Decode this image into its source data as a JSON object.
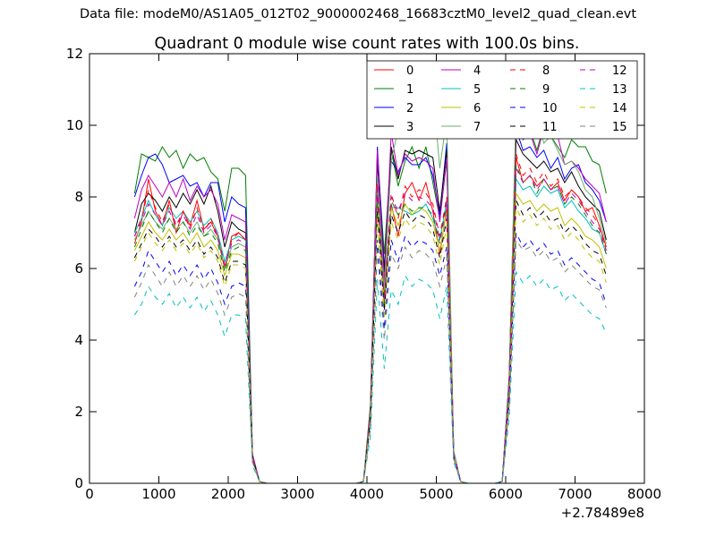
{
  "figure": {
    "suptitle": "Data file: modeM0/AS1A05_012T02_9000002468_16683cztM0_level2_quad_clean.evt",
    "background": "#ffffff"
  },
  "chart_data": {
    "type": "line",
    "title": "Quadrant 0 module wise count rates with 100.0s bins.",
    "xlabel": "",
    "ylabel": "",
    "xlim": [
      0,
      8000
    ],
    "ylim": [
      0,
      12
    ],
    "x_offset_label": "+2.78489e8",
    "x_ticks": [
      0,
      1000,
      2000,
      3000,
      4000,
      5000,
      6000,
      7000,
      8000
    ],
    "y_ticks": [
      0,
      2,
      4,
      6,
      8,
      10,
      12
    ],
    "grid": false,
    "legend_position": "top-right",
    "legend_columns": 4,
    "x": [
      650,
      750,
      850,
      950,
      1050,
      1150,
      1250,
      1350,
      1450,
      1550,
      1650,
      1750,
      1850,
      1950,
      2050,
      2150,
      2250,
      2350,
      2450,
      2550,
      2650,
      2750,
      2850,
      2950,
      3050,
      3150,
      3250,
      3350,
      3450,
      3550,
      3650,
      3750,
      3850,
      3950,
      4050,
      4150,
      4250,
      4350,
      4450,
      4550,
      4650,
      4750,
      4850,
      4950,
      5050,
      5150,
      5250,
      5350,
      5450,
      5550,
      5650,
      5750,
      5850,
      5950,
      6050,
      6150,
      6250,
      6350,
      6450,
      6550,
      6650,
      6750,
      6850,
      6950,
      7050,
      7150,
      7250,
      7350,
      7450
    ],
    "series": [
      {
        "name": "0",
        "color": "#ff0000",
        "style": "solid",
        "values": [
          6.7,
          7.3,
          8.5,
          7.6,
          7.2,
          7.9,
          7.0,
          7.6,
          7.2,
          7.9,
          7.1,
          7.3,
          6.9,
          6.0,
          6.9,
          7.0,
          6.8,
          0.7,
          0.05,
          0,
          0,
          0,
          0,
          0,
          0,
          0,
          0,
          0,
          0,
          0,
          0,
          0,
          0,
          0.05,
          1.8,
          8.2,
          5.2,
          7.8,
          6.9,
          8.1,
          8.4,
          7.9,
          8.4,
          7.6,
          6.4,
          7.7,
          0.8,
          0.05,
          0,
          0,
          0,
          0,
          0,
          0.05,
          2.5,
          9.1,
          8.4,
          8.6,
          8.3,
          8.5,
          8.2,
          8.4,
          7.9,
          8.2,
          8.0,
          7.6,
          7.7,
          7.2,
          6.6
        ]
      },
      {
        "name": "1",
        "color": "#008000",
        "style": "solid",
        "values": [
          8.1,
          9.2,
          9.1,
          9.0,
          9.4,
          9.1,
          9.3,
          8.8,
          9.2,
          9.0,
          9.1,
          8.7,
          8.5,
          7.6,
          8.8,
          8.8,
          8.6,
          0.8,
          0.05,
          0,
          0,
          0,
          0,
          0,
          0,
          0,
          0,
          0,
          0,
          0,
          0,
          0,
          0,
          0.05,
          2.2,
          9.2,
          6.4,
          9.3,
          8.3,
          9.0,
          9.4,
          8.8,
          9.4,
          8.4,
          7.4,
          9.0,
          0.9,
          0.05,
          0,
          0,
          0,
          0,
          0,
          0.05,
          3.0,
          10.2,
          9.6,
          9.9,
          9.3,
          10.0,
          9.7,
          9.4,
          9.1,
          9.6,
          9.4,
          9.4,
          9.0,
          8.9,
          8.1
        ]
      },
      {
        "name": "2",
        "color": "#0000ff",
        "style": "solid",
        "values": [
          8.0,
          8.6,
          9.1,
          9.2,
          8.9,
          8.4,
          8.5,
          8.6,
          8.3,
          8.4,
          8.0,
          8.4,
          8.4,
          7.3,
          8.0,
          7.8,
          7.7,
          0.7,
          0.05,
          0,
          0,
          0,
          0,
          0,
          0,
          0,
          0,
          0,
          0,
          0,
          0,
          0,
          0,
          0.05,
          2.0,
          9.4,
          6.0,
          9.0,
          8.7,
          9.1,
          8.9,
          8.9,
          9.1,
          8.6,
          7.5,
          9.5,
          0.9,
          0.05,
          0,
          0,
          0,
          0,
          0,
          0.05,
          2.9,
          9.9,
          9.3,
          9.4,
          9.1,
          9.3,
          8.8,
          9.1,
          8.5,
          8.8,
          8.9,
          8.4,
          8.2,
          7.9,
          7.3
        ]
      },
      {
        "name": "3",
        "color": "#000000",
        "style": "solid",
        "values": [
          7.0,
          7.8,
          8.1,
          7.9,
          7.6,
          8.0,
          7.7,
          8.1,
          7.8,
          8.2,
          7.8,
          8.3,
          7.6,
          6.6,
          7.3,
          7.1,
          7.0,
          0.8,
          0.05,
          0,
          0,
          0,
          0,
          0,
          0,
          0,
          0,
          0,
          0,
          0,
          0,
          0,
          0,
          0.05,
          2.0,
          9.0,
          5.9,
          9.4,
          8.5,
          9.3,
          9.2,
          9.3,
          9.2,
          9.1,
          7.6,
          9.3,
          0.9,
          0.05,
          0,
          0,
          0,
          0,
          0,
          0.05,
          2.8,
          9.6,
          9.2,
          9.0,
          8.8,
          9.0,
          8.7,
          8.8,
          8.4,
          8.7,
          8.3,
          8.0,
          7.8,
          7.6,
          6.8
        ]
      },
      {
        "name": "4",
        "color": "#bf00bf",
        "style": "solid",
        "values": [
          7.4,
          8.2,
          8.6,
          8.3,
          8.0,
          8.4,
          8.0,
          8.5,
          7.9,
          8.3,
          8.0,
          8.2,
          7.8,
          6.8,
          7.5,
          7.4,
          7.3,
          0.8,
          0.05,
          0,
          0,
          0,
          0,
          0,
          0,
          0,
          0,
          0,
          0,
          0,
          0,
          0,
          0,
          0.05,
          2.1,
          9.3,
          5.6,
          9.8,
          8.6,
          9.2,
          9.0,
          9.1,
          9.0,
          8.8,
          7.3,
          9.1,
          0.9,
          0.05,
          0,
          0,
          0,
          0,
          0,
          0.05,
          2.9,
          10.1,
          9.6,
          9.8,
          9.2,
          9.9,
          9.7,
          9.7,
          8.9,
          9.0,
          8.8,
          8.5,
          8.3,
          8.1,
          7.3
        ]
      },
      {
        "name": "5",
        "color": "#00bfbf",
        "style": "solid",
        "values": [
          7.0,
          7.4,
          7.9,
          7.5,
          7.2,
          7.7,
          7.4,
          7.6,
          7.3,
          7.6,
          7.2,
          7.4,
          7.0,
          6.2,
          6.8,
          6.9,
          6.8,
          0.7,
          0.05,
          0,
          0,
          0,
          0,
          0,
          0,
          0,
          0,
          0,
          0,
          0,
          0,
          0,
          0,
          0.05,
          1.9,
          8.1,
          5.0,
          7.7,
          7.7,
          7.6,
          7.5,
          7.6,
          7.8,
          7.4,
          6.8,
          7.9,
          0.8,
          0.05,
          0,
          0,
          0,
          0,
          0,
          0.05,
          2.6,
          8.5,
          8.2,
          8.3,
          8.0,
          8.3,
          8.1,
          8.2,
          7.7,
          7.9,
          7.6,
          7.4,
          7.1,
          7.0,
          6.4
        ]
      },
      {
        "name": "6",
        "color": "#bfbf00",
        "style": "solid",
        "values": [
          6.5,
          6.9,
          7.3,
          7.0,
          6.8,
          7.1,
          6.8,
          7.0,
          6.7,
          7.0,
          6.6,
          6.8,
          6.5,
          5.8,
          6.4,
          6.4,
          6.3,
          0.7,
          0.05,
          0,
          0,
          0,
          0,
          0,
          0,
          0,
          0,
          0,
          0,
          0,
          0,
          0,
          0,
          0.05,
          1.8,
          7.9,
          4.9,
          7.7,
          7.2,
          7.8,
          7.5,
          7.7,
          7.6,
          7.3,
          6.5,
          7.6,
          0.8,
          0.05,
          0,
          0,
          0,
          0,
          0,
          0.05,
          2.5,
          8.1,
          7.8,
          7.9,
          7.6,
          7.8,
          7.6,
          7.7,
          7.2,
          7.4,
          7.2,
          6.9,
          6.8,
          6.6,
          6.0
        ]
      },
      {
        "name": "7",
        "color": "#6aaf6a",
        "style": "solid",
        "values": [
          6.8,
          7.2,
          7.6,
          7.3,
          7.1,
          7.4,
          7.1,
          7.3,
          7.0,
          7.3,
          6.9,
          7.1,
          6.8,
          6.0,
          6.6,
          6.7,
          6.6,
          0.7,
          0.05,
          0,
          0,
          0,
          0,
          0,
          0,
          0,
          0,
          0,
          0,
          0,
          0,
          0,
          0,
          0.05,
          2.0,
          8.6,
          5.4,
          9.0,
          9.9,
          9.8,
          10.1,
          10.3,
          9.7,
          11.0,
          8.8,
          10.2,
          0.9,
          0.05,
          0,
          0,
          0,
          0,
          0,
          0.05,
          2.8,
          10.6,
          9.9,
          10.1,
          10.3,
          9.5,
          9.7,
          9.3,
          8.9,
          9.0,
          8.7,
          8.2,
          8.0,
          7.4,
          6.7
        ]
      },
      {
        "name": "8",
        "color": "#ff0000",
        "style": "dashed",
        "values": [
          6.9,
          7.4,
          8.2,
          7.7,
          7.3,
          7.8,
          7.2,
          7.6,
          7.1,
          7.7,
          7.0,
          7.4,
          6.9,
          6.0,
          6.8,
          7.0,
          6.8,
          0.7,
          0.05,
          0,
          0,
          0,
          0,
          0,
          0,
          0,
          0,
          0,
          0,
          0,
          0,
          0,
          0,
          0.05,
          1.9,
          8.4,
          5.1,
          8.1,
          7.4,
          8.3,
          8.0,
          8.2,
          8.1,
          7.8,
          6.9,
          8.0,
          0.8,
          0.05,
          0,
          0,
          0,
          0,
          0,
          0.05,
          2.6,
          9.2,
          8.6,
          8.8,
          8.4,
          8.7,
          8.3,
          8.5,
          8.0,
          8.2,
          8.0,
          7.7,
          7.5,
          7.2,
          6.5
        ]
      },
      {
        "name": "9",
        "color": "#008000",
        "style": "dashed",
        "values": [
          6.6,
          7.1,
          7.6,
          7.3,
          7.0,
          7.4,
          7.0,
          7.3,
          6.9,
          7.2,
          6.9,
          7.0,
          6.7,
          5.9,
          6.5,
          6.6,
          6.5,
          0.7,
          0.05,
          0,
          0,
          0,
          0,
          0,
          0,
          0,
          0,
          0,
          0,
          0,
          0,
          0,
          0,
          0.05,
          1.9,
          8.0,
          5.0,
          7.9,
          7.5,
          7.8,
          7.6,
          7.7,
          7.7,
          7.5,
          6.7,
          7.8,
          0.8,
          0.05,
          0,
          0,
          0,
          0,
          0,
          0.05,
          2.7,
          8.9,
          8.4,
          8.6,
          8.1,
          8.5,
          8.2,
          8.3,
          7.8,
          8.0,
          7.8,
          7.5,
          7.2,
          7.0,
          6.4
        ]
      },
      {
        "name": "10",
        "color": "#0000ff",
        "style": "dashed",
        "values": [
          5.5,
          5.9,
          6.5,
          6.2,
          5.9,
          6.2,
          5.8,
          6.1,
          5.8,
          6.1,
          5.7,
          6.0,
          5.6,
          5.0,
          5.5,
          5.6,
          5.5,
          0.6,
          0.05,
          0,
          0,
          0,
          0,
          0,
          0,
          0,
          0,
          0,
          0,
          0,
          0,
          0,
          0,
          0.05,
          1.6,
          6.8,
          4.3,
          6.8,
          6.2,
          6.9,
          6.6,
          6.8,
          6.7,
          6.5,
          5.8,
          6.6,
          0.7,
          0.05,
          0,
          0,
          0,
          0,
          0,
          0.05,
          2.2,
          7.0,
          6.6,
          6.8,
          6.5,
          6.7,
          6.4,
          6.5,
          6.1,
          6.3,
          6.1,
          5.9,
          5.7,
          5.6,
          5.0
        ]
      },
      {
        "name": "11",
        "color": "#000000",
        "style": "dashed",
        "values": [
          6.3,
          6.7,
          7.1,
          6.9,
          6.6,
          6.9,
          6.6,
          6.8,
          6.5,
          6.8,
          6.4,
          6.6,
          6.3,
          5.6,
          6.2,
          6.2,
          6.1,
          0.7,
          0.05,
          0,
          0,
          0,
          0,
          0,
          0,
          0,
          0,
          0,
          0,
          0,
          0,
          0,
          0,
          0.05,
          1.8,
          7.6,
          4.8,
          7.5,
          7.0,
          7.6,
          7.3,
          7.5,
          7.4,
          7.1,
          6.3,
          7.4,
          0.8,
          0.05,
          0,
          0,
          0,
          0,
          0,
          0.05,
          2.4,
          7.9,
          7.5,
          7.7,
          7.4,
          7.6,
          7.3,
          7.4,
          7.0,
          7.2,
          7.0,
          6.7,
          6.5,
          6.4,
          5.8
        ]
      },
      {
        "name": "12",
        "color": "#bf00bf",
        "style": "dashed",
        "values": [
          6.9,
          7.3,
          7.8,
          7.5,
          7.2,
          7.6,
          7.2,
          7.5,
          7.1,
          7.5,
          7.0,
          7.2,
          6.9,
          6.1,
          6.7,
          6.8,
          6.7,
          0.7,
          0.05,
          0,
          0,
          0,
          0,
          0,
          0,
          0,
          0,
          0,
          0,
          0,
          0,
          0,
          0,
          0.05,
          1.9,
          8.2,
          5.1,
          8.0,
          7.6,
          8.1,
          7.9,
          8.0,
          7.9,
          7.7,
          6.8,
          7.9,
          0.8,
          0.05,
          0,
          0,
          0,
          0,
          0,
          0.05,
          2.6,
          8.8,
          8.4,
          8.6,
          8.2,
          8.5,
          8.2,
          8.3,
          7.8,
          8.1,
          7.9,
          7.6,
          7.3,
          7.1,
          6.5
        ]
      },
      {
        "name": "13",
        "color": "#00bfbf",
        "style": "dashed",
        "values": [
          4.7,
          5.0,
          5.5,
          5.2,
          5.0,
          5.3,
          4.9,
          5.2,
          4.9,
          5.2,
          4.8,
          5.1,
          4.7,
          4.1,
          4.7,
          4.7,
          4.6,
          0.5,
          0.05,
          0,
          0,
          0,
          0,
          0,
          0,
          0,
          0,
          0,
          0,
          0,
          0,
          0,
          0,
          0.05,
          1.3,
          5.7,
          3.2,
          5.4,
          5.0,
          5.8,
          5.5,
          5.7,
          5.6,
          5.4,
          4.6,
          5.5,
          0.6,
          0.05,
          0,
          0,
          0,
          0,
          0,
          0.05,
          1.8,
          5.9,
          5.6,
          5.8,
          5.5,
          5.7,
          5.4,
          5.5,
          5.1,
          5.3,
          5.1,
          4.9,
          4.7,
          4.6,
          4.2
        ]
      },
      {
        "name": "14",
        "color": "#bfbf00",
        "style": "dashed",
        "values": [
          6.2,
          6.6,
          7.0,
          6.7,
          6.5,
          6.8,
          6.5,
          6.7,
          6.4,
          6.7,
          6.3,
          6.5,
          6.2,
          5.5,
          6.1,
          6.1,
          6.0,
          0.6,
          0.05,
          0,
          0,
          0,
          0,
          0,
          0,
          0,
          0,
          0,
          0,
          0,
          0,
          0,
          0,
          0.05,
          1.7,
          7.4,
          4.6,
          7.3,
          6.8,
          7.4,
          7.1,
          7.3,
          7.2,
          6.9,
          6.1,
          7.2,
          0.8,
          0.05,
          0,
          0,
          0,
          0,
          0,
          0.05,
          2.4,
          7.7,
          7.3,
          7.5,
          7.2,
          7.4,
          7.1,
          7.2,
          6.8,
          7.0,
          6.8,
          6.5,
          6.3,
          6.2,
          5.6
        ]
      },
      {
        "name": "15",
        "color": "#808080",
        "style": "dashed",
        "values": [
          5.2,
          5.6,
          6.1,
          5.8,
          5.5,
          5.9,
          5.5,
          5.8,
          5.5,
          5.8,
          5.4,
          5.7,
          5.3,
          4.7,
          5.2,
          5.3,
          5.2,
          0.6,
          0.05,
          0,
          0,
          0,
          0,
          0,
          0,
          0,
          0,
          0,
          0,
          0,
          0,
          0,
          0,
          0.05,
          1.5,
          6.5,
          4.0,
          6.4,
          6.0,
          6.6,
          6.3,
          6.5,
          6.4,
          6.2,
          5.5,
          6.3,
          0.7,
          0.05,
          0,
          0,
          0,
          0,
          0,
          0.05,
          2.1,
          6.8,
          6.5,
          6.6,
          6.3,
          6.5,
          6.2,
          6.3,
          5.9,
          6.1,
          5.9,
          5.7,
          5.5,
          5.4,
          4.9
        ]
      }
    ]
  }
}
